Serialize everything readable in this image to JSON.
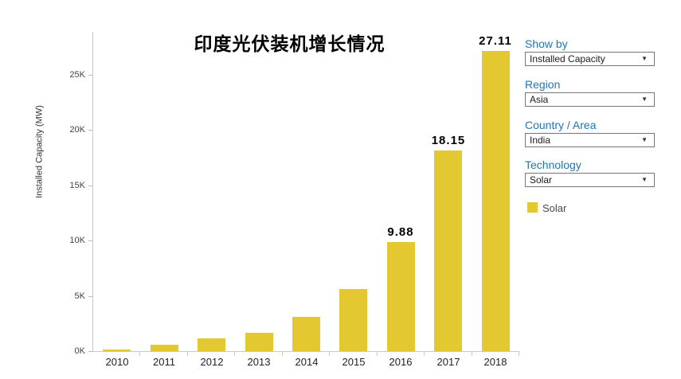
{
  "title": "印度光伏装机增长情况",
  "chart_data": {
    "type": "bar",
    "title": "印度光伏装机增长情况",
    "xlabel": "",
    "ylabel": "Installed Capacity (MW)",
    "categories": [
      "2010",
      "2011",
      "2012",
      "2013",
      "2014",
      "2015",
      "2016",
      "2017",
      "2018"
    ],
    "values_mw": [
      65,
      566,
      1176,
      1686,
      3062,
      5593,
      9879,
      18152,
      27107
    ],
    "bar_labels": [
      "",
      "",
      "",
      "",
      "",
      "",
      "9.88",
      "18.15",
      "27.11"
    ],
    "y_tick_labels": [
      "0K",
      "5K",
      "10K",
      "15K",
      "20K",
      "25K"
    ],
    "y_tick_values_k": [
      0,
      5,
      10,
      15,
      20,
      25
    ],
    "ylim_k": [
      0,
      28.9
    ],
    "grid": false,
    "bar_color": "#E3C832",
    "legend_position": "right"
  },
  "y_axis_title": "Installed Capacity (MW)",
  "filters": [
    {
      "label": "Show by",
      "value": "Installed Capacity"
    },
    {
      "label": "Region",
      "value": "Asia"
    },
    {
      "label": "Country / Area",
      "value": "India"
    },
    {
      "label": "Technology",
      "value": "Solar"
    }
  ],
  "legend": {
    "items": [
      {
        "label": "Solar",
        "color": "#E3C832"
      }
    ]
  },
  "icons": {
    "dropdown_arrow": "▼"
  },
  "colors": {
    "bar": "#E3C832",
    "filter_heading": "#1F77B4",
    "axis_line": "#C9C9C9",
    "tick_label": "#444444",
    "bar_label": "#000000"
  }
}
